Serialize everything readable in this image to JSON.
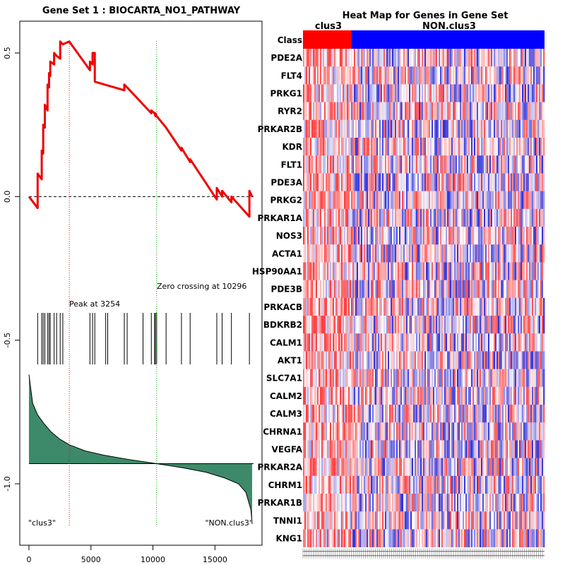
{
  "chart_data": [
    {
      "type": "line",
      "title": "Gene Set  1 : BIOCARTA_NO1_PATHWAY",
      "xlim": [
        0,
        18000
      ],
      "ylim": [
        -1.2,
        0.6
      ],
      "x_ticks": [
        "0",
        "5000",
        "10000",
        "15000"
      ],
      "x_tick_values": [
        0,
        5000,
        10000,
        15000
      ],
      "y_ticks": [
        "-1.0",
        "-0.5",
        "0.0",
        "0.5"
      ],
      "y_tick_values": [
        -1.0,
        -0.5,
        0.0,
        0.5
      ],
      "enrichment_color": "#ee0000",
      "enrichment_curve": {
        "x": [
          0,
          700,
          700,
          1030,
          1030,
          1150,
          1150,
          1280,
          1280,
          1500,
          1500,
          1620,
          1620,
          1720,
          1720,
          2030,
          2030,
          2230,
          2230,
          2520,
          2520,
          2730,
          2730,
          3250,
          4920,
          4920,
          5130,
          5130,
          5310,
          5310,
          7690,
          7690,
          7920,
          7920,
          9870,
          9870,
          10130,
          10130,
          10200,
          10200,
          10300,
          10300,
          11060,
          11060,
          12300,
          12300,
          13000,
          13000,
          15150,
          15150,
          15580,
          15580,
          16330,
          16330,
          17780,
          17780,
          18000
        ],
        "y": [
          0.0,
          -0.04,
          0.08,
          0.06,
          0.16,
          0.15,
          0.25,
          0.24,
          0.32,
          0.3,
          0.39,
          0.38,
          0.43,
          0.42,
          0.47,
          0.46,
          0.5,
          0.49,
          0.49,
          0.48,
          0.54,
          0.53,
          0.53,
          0.54,
          0.44,
          0.47,
          0.46,
          0.5,
          0.5,
          0.4,
          0.37,
          0.39,
          0.38,
          0.38,
          0.29,
          0.3,
          0.29,
          0.29,
          0.28,
          0.29,
          0.28,
          0.28,
          0.24,
          0.24,
          0.16,
          0.17,
          0.12,
          0.13,
          -0.01,
          0.03,
          0.0,
          0.02,
          -0.02,
          0.0,
          -0.07,
          0.02,
          0.0
        ]
      },
      "hit_positions": [
        700,
        1030,
        1150,
        1280,
        1500,
        1620,
        1720,
        2030,
        2230,
        2520,
        2730,
        4920,
        5130,
        5310,
        6190,
        6350,
        7690,
        7920,
        9200,
        9870,
        10130,
        10200,
        10300,
        11060,
        12300,
        13000,
        15150,
        15580,
        16330,
        17780
      ],
      "peak_x": 3254,
      "peak_label": "Peak at 3254",
      "zero_crossing_x": 10296,
      "zero_label": "Zero crossing at 10296",
      "ranked_metric": {
        "x": [
          0,
          300,
          700,
          1200,
          1800,
          2500,
          3300,
          4500,
          6000,
          8000,
          10296,
          12500,
          14300,
          15800,
          16900,
          17500,
          17900,
          18000
        ],
        "y": [
          -0.62,
          -0.72,
          -0.76,
          -0.79,
          -0.82,
          -0.845,
          -0.865,
          -0.885,
          -0.9,
          -0.915,
          -0.93,
          -0.945,
          -0.96,
          -0.98,
          -1.0,
          -1.03,
          -1.09,
          -1.14
        ]
      },
      "ranked_baseline": -0.93,
      "ranked_fill_color": "#3d8a6a",
      "left_label": "\"clus3\"",
      "right_label": "\"NON.clus3\""
    },
    {
      "type": "heatmap",
      "title": "Heat Map for Genes in Gene Set",
      "class_row_label": "Class",
      "class_labels": [
        "clus3",
        "NON.clus3"
      ],
      "class_colors": [
        "#ff0000",
        "#0000ff"
      ],
      "class_split_fraction": 0.2,
      "genes": [
        "PDE2A",
        "FLT4",
        "PRKG1",
        "RYR2",
        "PRKAR2B",
        "KDR",
        "FLT1",
        "PDE3A",
        "PRKG2",
        "PRKAR1A",
        "NOS3",
        "ACTA1",
        "HSP90AA1",
        "PDE3B",
        "PRKACB",
        "BDKRB2",
        "CALM1",
        "AKT1",
        "SLC7A1",
        "CALM2",
        "CALM3",
        "CHRNA1",
        "VEGFA",
        "PRKAR2A",
        "CHRM1",
        "PRKAR1B",
        "TNNI1",
        "KNG1"
      ],
      "color_scale": [
        "#0000cc",
        "#ffffff",
        "#ee0000"
      ]
    }
  ]
}
